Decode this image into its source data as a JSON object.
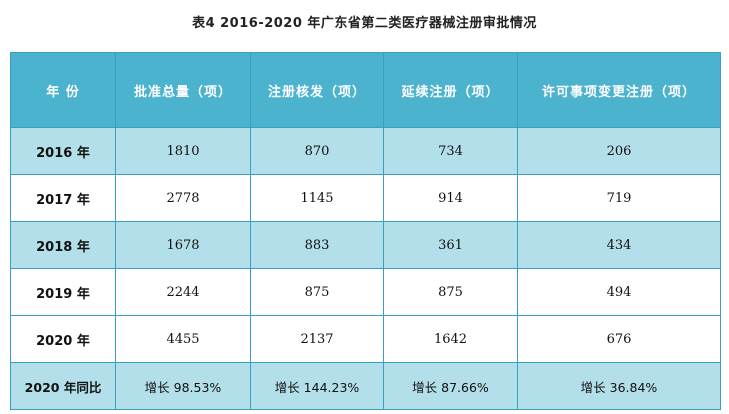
{
  "caption": "表4 2016-2020 年广东省第二类医疗器械注册审批情况",
  "table": {
    "headers": [
      "年  份",
      "批准总量（项）",
      "注册核发（项）",
      "延续注册（项）",
      "许可事项变更注册（项）"
    ],
    "rows": [
      [
        "2016 年",
        "1810",
        "870",
        "734",
        "206"
      ],
      [
        "2017 年",
        "2778",
        "1145",
        "914",
        "719"
      ],
      [
        "2018 年",
        "1678",
        "883",
        "361",
        "434"
      ],
      [
        "2019 年",
        "2244",
        "875",
        "875",
        "494"
      ],
      [
        "2020 年",
        "4455",
        "2137",
        "1642",
        "676"
      ],
      [
        "2020 年同比",
        "增长 98.53%",
        "增长 144.23%",
        "增长 87.66%",
        "增长 36.84%"
      ]
    ]
  },
  "colors": {
    "header_bg": "#4cb3cf",
    "shaded_row_bg": "#b2dfe9",
    "border": "#3a9ec0"
  }
}
